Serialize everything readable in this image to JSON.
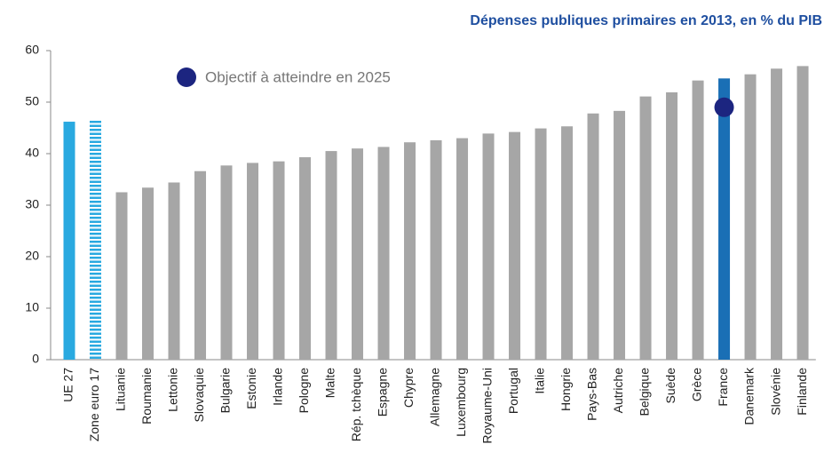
{
  "chart_data": {
    "type": "bar",
    "title": "Dépenses publiques primaires en 2013, en % du PIB",
    "categories": [
      "UE 27",
      "Zone euro 17",
      "Lituanie",
      "Roumanie",
      "Lettonie",
      "Slovaquie",
      "Bulgarie",
      "Estonie",
      "Irlande",
      "Pologne",
      "Malte",
      "Rép. tchèque",
      "Espagne",
      "Chypre",
      "Allemagne",
      "Luxembourg",
      "Royaume-Uni",
      "Portugal",
      "Italie",
      "Hongrie",
      "Pays-Bas",
      "Autriche",
      "Belgique",
      "Suède",
      "Grèce",
      "France",
      "Danemark",
      "Slovénie",
      "Finlande"
    ],
    "values": [
      46.2,
      46.7,
      32.5,
      33.4,
      34.4,
      36.6,
      37.7,
      38.2,
      38.5,
      39.3,
      40.5,
      41.0,
      41.3,
      42.2,
      42.6,
      43.0,
      43.9,
      44.2,
      44.9,
      45.3,
      47.8,
      48.3,
      51.1,
      51.9,
      54.2,
      54.6,
      55.4,
      56.5,
      57.0
    ],
    "colors": [
      "#29a9e0",
      "#29a9e0",
      "#a6a6a6",
      "#a6a6a6",
      "#a6a6a6",
      "#a6a6a6",
      "#a6a6a6",
      "#a6a6a6",
      "#a6a6a6",
      "#a6a6a6",
      "#a6a6a6",
      "#a6a6a6",
      "#a6a6a6",
      "#a6a6a6",
      "#a6a6a6",
      "#a6a6a6",
      "#a6a6a6",
      "#a6a6a6",
      "#a6a6a6",
      "#a6a6a6",
      "#a6a6a6",
      "#a6a6a6",
      "#a6a6a6",
      "#a6a6a6",
      "#a6a6a6",
      "#1a6fb5",
      "#a6a6a6",
      "#a6a6a6",
      "#a6a6a6"
    ],
    "fill_styles": [
      "solid",
      "striped",
      "solid",
      "solid",
      "solid",
      "solid",
      "solid",
      "solid",
      "solid",
      "solid",
      "solid",
      "solid",
      "solid",
      "solid",
      "solid",
      "solid",
      "solid",
      "solid",
      "solid",
      "solid",
      "solid",
      "solid",
      "solid",
      "solid",
      "solid",
      "solid",
      "solid",
      "solid",
      "solid"
    ],
    "target": {
      "name": "Objectif à atteindre en 2025",
      "color": "#1c2580",
      "values": [
        null,
        null,
        null,
        null,
        null,
        null,
        null,
        null,
        null,
        null,
        null,
        null,
        null,
        null,
        null,
        null,
        null,
        null,
        null,
        null,
        null,
        null,
        null,
        null,
        null,
        49,
        null,
        null,
        null
      ]
    },
    "ylim": [
      0,
      60
    ],
    "yticks": [
      0,
      10,
      20,
      30,
      40,
      50,
      60
    ],
    "grid": false
  }
}
